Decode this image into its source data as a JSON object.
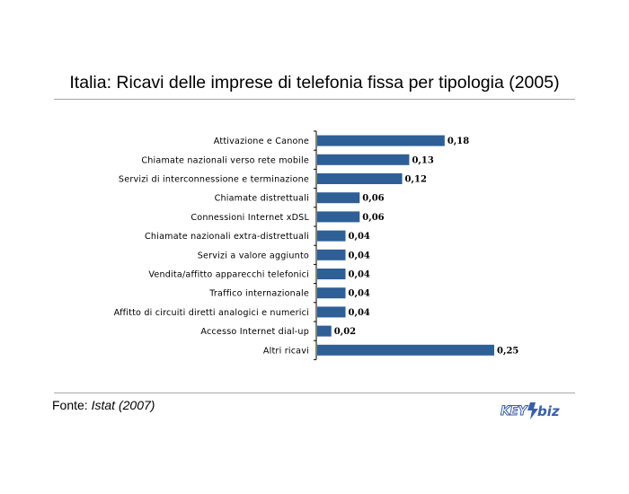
{
  "title": "Italia: Ricavi delle imprese di telefonia fissa per tipologia (2005)",
  "source": {
    "label": "Fonte:",
    "name": "Istat",
    "year": "(2007)"
  },
  "logo": {
    "text": "KEY4biz",
    "color": "#3a5fa8"
  },
  "colors": {
    "bar": "#2e5f96",
    "axis": "#000000"
  },
  "chart_data": {
    "type": "bar",
    "orientation": "horizontal",
    "categories": [
      "Attivazione e Canone",
      "Chiamate nazionali verso rete mobile",
      "Servizi di interconnessione e terminazione",
      "Chiamate distrettuali",
      "Connessioni Internet xDSL",
      "Chiamate nazionali extra-distrettuali",
      "Servizi a valore aggiunto",
      "Vendita/affitto apparecchi telefonici",
      "Traffico internazionale",
      "Affitto di circuiti diretti analogici e numerici",
      "Accesso Internet dial-up",
      "Altri ricavi"
    ],
    "values": [
      0.18,
      0.13,
      0.12,
      0.06,
      0.06,
      0.04,
      0.04,
      0.04,
      0.04,
      0.04,
      0.02,
      0.25
    ],
    "value_labels": [
      "0,18",
      "0,13",
      "0,12",
      "0,06",
      "0,06",
      "0,04",
      "0,04",
      "0,04",
      "0,04",
      "0,04",
      "0,02",
      "0,25"
    ],
    "xlim": [
      0,
      0.25
    ],
    "grid": false,
    "legend": "none"
  }
}
